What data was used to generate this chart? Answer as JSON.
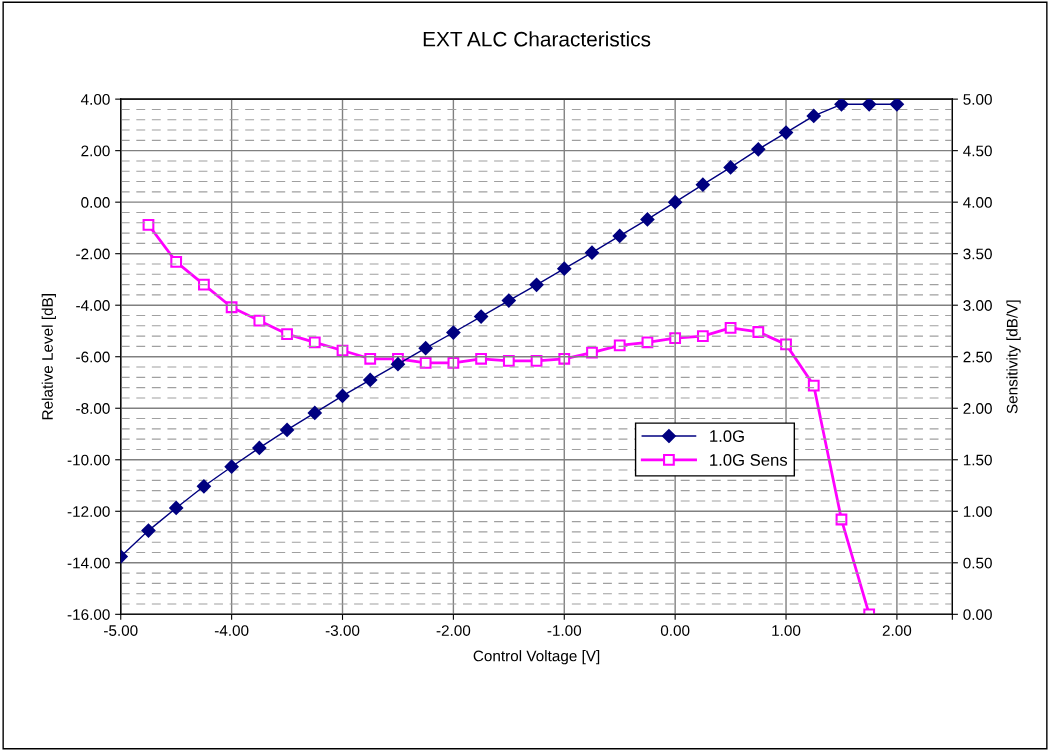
{
  "chart_data": {
    "type": "line",
    "title": "EXT ALC Characteristics",
    "xlabel": "Control Voltage [V]",
    "ylabel": "Relative Level [dB]",
    "y2label": "Sensitivity [dB/V]",
    "x": [
      -5,
      -4.75,
      -4.5,
      -4.25,
      -4,
      -3.75,
      -3.5,
      -3.25,
      -3,
      -2.75,
      -2.5,
      -2.25,
      -2,
      -1.75,
      -1.5,
      -1.25,
      -1,
      -0.75,
      -0.5,
      -0.25,
      0,
      0.25,
      0.5,
      0.75,
      1,
      1.25,
      1.5,
      1.75,
      2
    ],
    "series": [
      {
        "name": "1.0G",
        "color": "#000080",
        "marker": "diamond",
        "values": [
          -13.76,
          -12.75,
          -11.87,
          -11.03,
          -10.27,
          -9.54,
          -8.84,
          -8.18,
          -7.52,
          -6.9,
          -6.29,
          -5.67,
          -5.06,
          -4.44,
          -3.82,
          -3.21,
          -2.58,
          -1.96,
          -1.31,
          -0.67,
          0.0,
          0.68,
          1.35,
          2.05,
          2.7,
          3.35,
          3.8,
          3.8,
          3.8
        ]
      },
      {
        "name": "1.0G Sens",
        "color": "#ff00ff",
        "marker": "square",
        "axis": "y2",
        "values": [
          null,
          3.78,
          3.42,
          3.2,
          2.98,
          2.85,
          2.72,
          2.64,
          2.56,
          2.48,
          2.48,
          2.44,
          2.44,
          2.48,
          2.46,
          2.46,
          2.48,
          2.54,
          2.61,
          2.64,
          2.68,
          2.7,
          2.78,
          2.74,
          2.62,
          2.22,
          0.92,
          0.0,
          null
        ]
      }
    ],
    "xlim": [
      -5,
      2.5
    ],
    "xticks": [
      {
        "value": -5,
        "label": "-5.00"
      },
      {
        "value": -4,
        "label": "-4.00"
      },
      {
        "value": -3,
        "label": "-3.00"
      },
      {
        "value": -2,
        "label": "-2.00"
      },
      {
        "value": -1,
        "label": "-1.00"
      },
      {
        "value": 0,
        "label": "0.00"
      },
      {
        "value": 1,
        "label": "1.00"
      },
      {
        "value": 2,
        "label": "2.00"
      },
      {
        "value": 2.5,
        "label": null
      }
    ],
    "ylim": [
      -16,
      4
    ],
    "yticks": [
      {
        "value": -16,
        "label": "-16.00"
      },
      {
        "value": -14,
        "label": "-14.00"
      },
      {
        "value": -12,
        "label": "-12.00"
      },
      {
        "value": -10,
        "label": "-10.00"
      },
      {
        "value": -8,
        "label": "-8.00"
      },
      {
        "value": -6,
        "label": "-6.00"
      },
      {
        "value": -4,
        "label": "-4.00"
      },
      {
        "value": -2,
        "label": "-2.00"
      },
      {
        "value": 0,
        "label": "0.00"
      },
      {
        "value": 2,
        "label": "2.00"
      },
      {
        "value": 4,
        "label": "4.00"
      }
    ],
    "y2lim": [
      0,
      5
    ],
    "y2ticks": [
      {
        "value": 0,
        "label": "0.00"
      },
      {
        "value": 0.5,
        "label": "0.50"
      },
      {
        "value": 1,
        "label": "1.00"
      },
      {
        "value": 1.5,
        "label": "1.50"
      },
      {
        "value": 2,
        "label": "2.00"
      },
      {
        "value": 2.5,
        "label": "2.50"
      },
      {
        "value": 3,
        "label": "3.00"
      },
      {
        "value": 3.5,
        "label": "3.50"
      },
      {
        "value": 4,
        "label": "4.00"
      },
      {
        "value": 4.5,
        "label": "4.50"
      },
      {
        "value": 5,
        "label": "5.00"
      }
    ],
    "grid": true,
    "legend": "center right",
    "line_style": "solid"
  }
}
